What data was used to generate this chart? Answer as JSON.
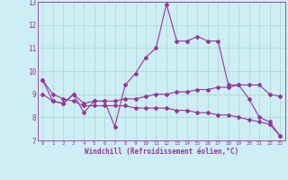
{
  "xlabel": "Windchill (Refroidissement éolien,°C)",
  "background_color": "#cdeef5",
  "grid_color": "#aad4cc",
  "line_color": "#993399",
  "x_values": [
    0,
    1,
    2,
    3,
    4,
    5,
    6,
    7,
    8,
    9,
    10,
    11,
    12,
    13,
    14,
    15,
    16,
    17,
    18,
    19,
    20,
    21,
    22,
    23
  ],
  "curve1": [
    9.6,
    8.7,
    8.6,
    9.0,
    8.2,
    8.7,
    8.7,
    7.6,
    9.4,
    9.9,
    10.6,
    11.0,
    12.9,
    11.3,
    11.3,
    11.5,
    11.3,
    11.3,
    9.4,
    9.4,
    8.8,
    8.0,
    7.8,
    7.2
  ],
  "curve2": [
    9.0,
    8.7,
    8.6,
    9.0,
    8.6,
    8.7,
    8.7,
    8.7,
    8.8,
    8.8,
    8.9,
    9.0,
    9.0,
    9.1,
    9.1,
    9.2,
    9.2,
    9.3,
    9.3,
    9.4,
    9.4,
    9.4,
    9.0,
    8.9
  ],
  "curve3": [
    9.6,
    9.0,
    8.8,
    8.7,
    8.5,
    8.5,
    8.5,
    8.5,
    8.5,
    8.4,
    8.4,
    8.4,
    8.4,
    8.3,
    8.3,
    8.2,
    8.2,
    8.1,
    8.1,
    8.0,
    7.9,
    7.8,
    7.7,
    7.2
  ],
  "ylim": [
    7,
    13
  ],
  "xlim": [
    -0.5,
    23.5
  ],
  "yticks": [
    7,
    8,
    9,
    10,
    11,
    12,
    13
  ],
  "xticks": [
    0,
    1,
    2,
    3,
    4,
    5,
    6,
    7,
    8,
    9,
    10,
    11,
    12,
    13,
    14,
    15,
    16,
    17,
    18,
    19,
    20,
    21,
    22,
    23
  ],
  "marker": "D",
  "markersize": 2.0,
  "linewidth": 0.8
}
